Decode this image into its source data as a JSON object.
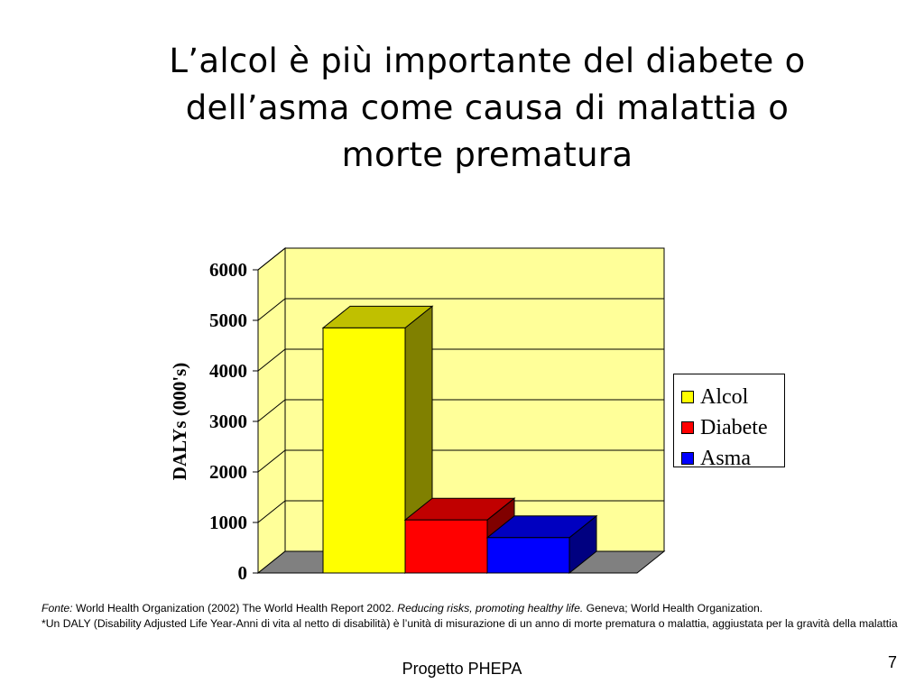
{
  "title_lines": [
    "L’alcol è più importante del diabete o",
    "dell’asma come causa di malattia  o",
    "morte prematura"
  ],
  "chart_data": {
    "type": "bar",
    "style": "3d",
    "ylabel": "DALYs (000's)",
    "ylim": [
      0,
      6000
    ],
    "yticks": [
      "0",
      "1000",
      "2000",
      "3000",
      "4000",
      "5000",
      "6000"
    ],
    "grid": true,
    "legend_position": "right",
    "series": [
      {
        "name": "Alcol",
        "values": [
          4850
        ],
        "color": "#ffff00",
        "side_color": "#808000",
        "top_color": "#c0c000"
      },
      {
        "name": "Diabete",
        "values": [
          1050
        ],
        "color": "#ff0000",
        "side_color": "#800000",
        "top_color": "#c00000"
      },
      {
        "name": "Asma",
        "values": [
          700
        ],
        "color": "#0000ff",
        "side_color": "#000080",
        "top_color": "#0000c0"
      }
    ],
    "colors": {
      "wall": "#ffff99",
      "floor": "#808080",
      "grid": "#000000"
    }
  },
  "source": {
    "fonte_label": "Fonte:",
    "fonte_text_1": " World Health Organization (2002) The World Health Report 2002. ",
    "fonte_italic": "Reducing risks, promoting healthy life.",
    "fonte_text_2": " Geneva; World Health Organization.",
    "note": "*Un DALY (Disability Adjusted Life Year-Anni di vita al netto di disabilità) è l’unità di misurazione di un anno di morte prematura o malattia, aggiustata per la gravità della malattia"
  },
  "footer": "Progetto PHEPA",
  "page_number": "7"
}
